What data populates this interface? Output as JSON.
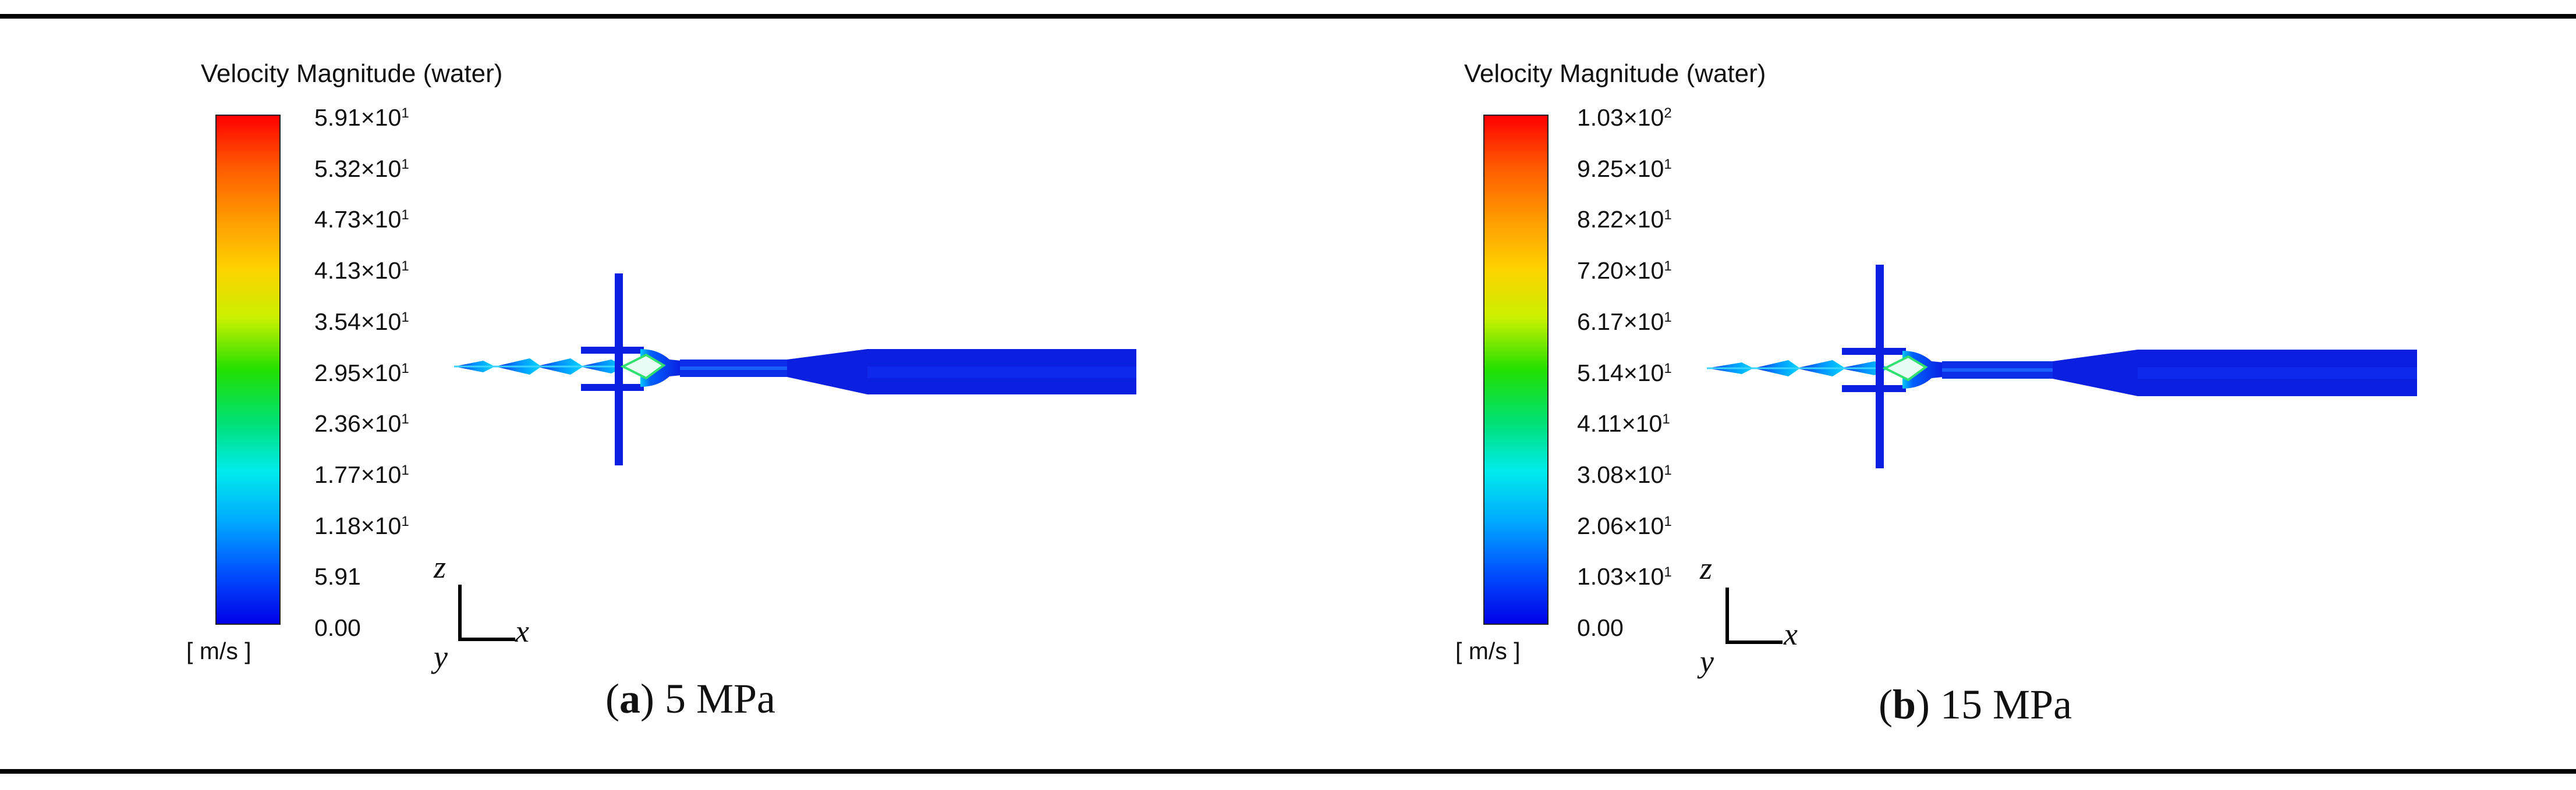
{
  "panels": [
    {
      "legend_title": "Velocity Magnitude (water)",
      "unit": "[ m/s ]",
      "ticks": [
        {
          "mant": "5.91",
          "exp": "1"
        },
        {
          "mant": "5.32",
          "exp": "1"
        },
        {
          "mant": "4.73",
          "exp": "1"
        },
        {
          "mant": "4.13",
          "exp": "1"
        },
        {
          "mant": "3.54",
          "exp": "1"
        },
        {
          "mant": "2.95",
          "exp": "1"
        },
        {
          "mant": "2.36",
          "exp": "1"
        },
        {
          "mant": "1.77",
          "exp": "1"
        },
        {
          "mant": "1.18",
          "exp": "1"
        },
        {
          "mant": "5.91",
          "exp": ""
        },
        {
          "mant": "0.00",
          "exp": ""
        }
      ],
      "axes": {
        "z": "z",
        "x": "x",
        "y": "y"
      },
      "caption": {
        "letter": "a",
        "text": "5 MPa"
      }
    },
    {
      "legend_title": "Velocity Magnitude (water)",
      "unit": "[ m/s ]",
      "ticks": [
        {
          "mant": "1.03",
          "exp": "2"
        },
        {
          "mant": "9.25",
          "exp": "1"
        },
        {
          "mant": "8.22",
          "exp": "1"
        },
        {
          "mant": "7.20",
          "exp": "1"
        },
        {
          "mant": "6.17",
          "exp": "1"
        },
        {
          "mant": "5.14",
          "exp": "1"
        },
        {
          "mant": "4.11",
          "exp": "1"
        },
        {
          "mant": "3.08",
          "exp": "1"
        },
        {
          "mant": "2.06",
          "exp": "1"
        },
        {
          "mant": "1.03",
          "exp": "1"
        },
        {
          "mant": "0.00",
          "exp": ""
        }
      ],
      "axes": {
        "z": "z",
        "x": "x",
        "y": "y"
      },
      "caption": {
        "letter": "b",
        "text": "15 MPa"
      }
    }
  ],
  "colors": {
    "rule": "#000000",
    "nozzle": "#0a1fe0",
    "nozzle_dark": "#0010c8",
    "jet_core": "#00d8ff",
    "jet_hot": "#40e060",
    "colormap": [
      "#ff0000",
      "#ff9800",
      "#ffd200",
      "#22e000",
      "#00ecec",
      "#0050ff",
      "#0000e6"
    ]
  }
}
